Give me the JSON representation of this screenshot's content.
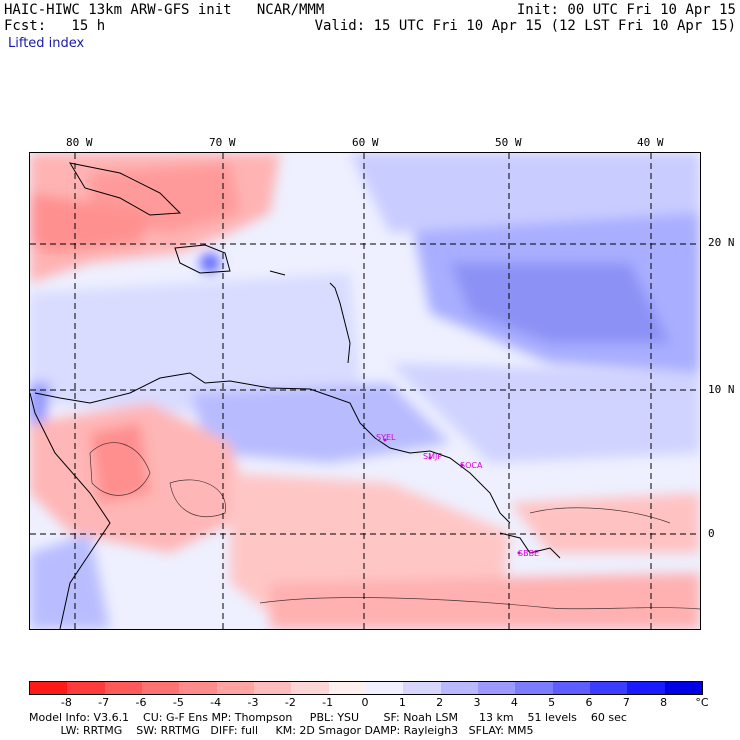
{
  "header": {
    "left_line1": "HAIC-HIWC 13km ARW-GFS init   NCAR/MMM",
    "left_line2": "Fcst:   15 h",
    "right_line1": "Init: 00 UTC Fri 10 Apr 15",
    "right_line2": "Valid: 15 UTC Fri 10 Apr 15 (12 LST Fri 10 Apr 15)",
    "field": "Lifted index"
  },
  "map": {
    "lon_labels": [
      "80 W",
      "70 W",
      "60 W",
      "50 W",
      "40 W"
    ],
    "lat_labels": [
      "20 N",
      "10 N",
      "0"
    ],
    "stations": [
      "SYEL",
      "SMJP",
      "SOCA",
      "SBBE"
    ]
  },
  "colorbar": {
    "ticks": [
      "-8",
      "-7",
      "-6",
      "-5",
      "-4",
      "-3",
      "-2",
      "-1",
      "0",
      "1",
      "2",
      "3",
      "4",
      "5",
      "6",
      "7",
      "8"
    ],
    "unit": "°C",
    "colors": [
      "#ff1a1a",
      "#ff3c3c",
      "#ff5a5a",
      "#ff7272",
      "#ff8c8c",
      "#ffa3a3",
      "#ffbcbc",
      "#ffd6d6",
      "#fff0f0",
      "#f0f0ff",
      "#d6d6ff",
      "#b8b8ff",
      "#9a9aff",
      "#7c7cff",
      "#5e5eff",
      "#3c3cff",
      "#1a1aff",
      "#0000e6"
    ]
  },
  "footer": {
    "line1": "Model Info: V3.6.1    CU: G-F Ens MP: Thompson     PBL: YSU       SF: Noah LSM      13 km    51 levels    60 sec",
    "line2": "         LW: RRTMG    SW: RRTMG   DIFF: full     KM: 2D Smagor DAMP: Rayleigh3   SFLAY: MM5"
  }
}
